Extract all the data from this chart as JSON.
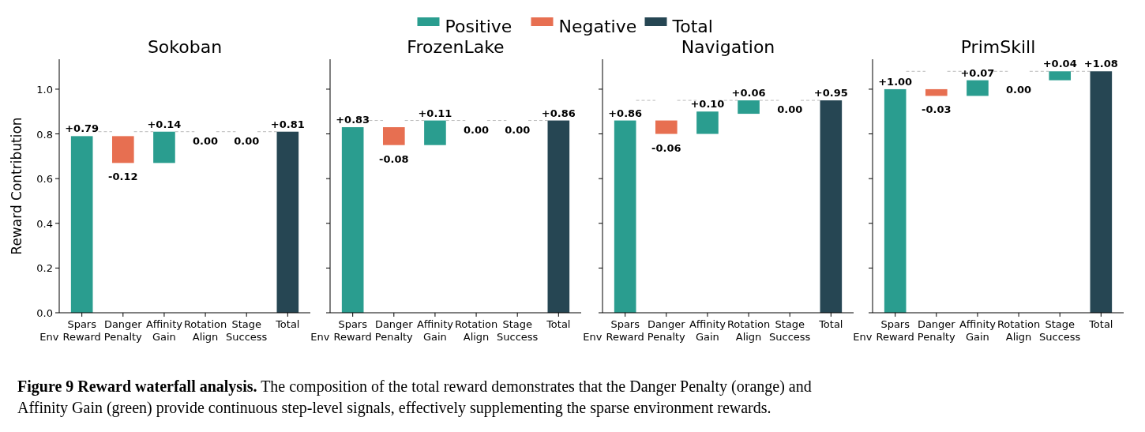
{
  "chart_data": [
    {
      "type": "bar",
      "title": "Sokoban",
      "ylabel": "Reward Contribution",
      "categories": [
        "Spars\nEnv Reward",
        "Danger\nPenalty",
        "Affinity\nGain",
        "Rotation\nAlign",
        "Stage\nSuccess",
        "Total"
      ],
      "ylim": [
        0,
        1.134
      ],
      "yticks": [
        {
          "value": 0,
          "label": "0.0"
        },
        {
          "value": 0.2,
          "label": "0.2"
        },
        {
          "value": 0.4,
          "label": "0.4"
        },
        {
          "value": 0.6,
          "label": "0.6"
        },
        {
          "value": 0.8,
          "label": "0.8"
        },
        {
          "value": 1,
          "label": "1.0"
        }
      ],
      "legend": "top",
      "series": [
        {
          "name": "Positive",
          "color": "#2a9d8f",
          "values": [
            0.79,
            null,
            0.14,
            null,
            null,
            null
          ],
          "base": [
            0,
            null,
            0.67,
            null,
            null,
            null
          ],
          "value_labels": [
            "+0.79",
            null,
            "+0.14",
            null,
            null,
            null
          ]
        },
        {
          "name": "Negative",
          "color": "#e76f51",
          "values": [
            null,
            -0.12,
            null,
            null,
            null,
            null
          ],
          "base": [
            null,
            0.79,
            null,
            null,
            null,
            null
          ],
          "value_labels": [
            null,
            "-0.12",
            null,
            null,
            null,
            null
          ]
        },
        {
          "name": "Total",
          "color": "#264653",
          "values": [
            null,
            null,
            null,
            null,
            null,
            0.81
          ],
          "base": [
            null,
            null,
            null,
            null,
            null,
            0
          ],
          "value_labels": [
            null,
            null,
            null,
            null,
            null,
            "+0.81"
          ]
        }
      ],
      "annotations": [
        "0.00",
        "0.00",
        "Figure 9  Reward waterfall analysis. The composition of the total reward demonstrates that the Danger Penalty (orange) and Affinity Gain (green) provide continuous step-level signals, effectively supplementing the sparse environment rewards."
      ]
    },
    {
      "type": "bar",
      "title": "FrozenLake",
      "categories": [
        "Spars\nEnv Reward",
        "Danger\nPenalty",
        "Affinity\nGain",
        "Rotation\nAlign",
        "Stage\nSuccess",
        "Total"
      ],
      "ylim": [
        0,
        1.134
      ],
      "yticks": [
        {
          "value": 0,
          "label": null
        },
        {
          "value": 0.2,
          "label": null
        },
        {
          "value": 0.4,
          "label": null
        },
        {
          "value": 0.6,
          "label": null
        },
        {
          "value": 0.8,
          "label": null
        },
        {
          "value": 1,
          "label": null
        }
      ],
      "tick_labels": "x",
      "series": [
        {
          "color": "#2a9d8f",
          "values": [
            0.83,
            null,
            0.11,
            null,
            null,
            null
          ],
          "base": [
            0,
            null,
            0.75,
            null,
            null,
            null
          ],
          "value_labels": [
            "+0.83",
            null,
            "+0.11",
            null,
            null,
            null
          ]
        },
        {
          "color": "#e76f51",
          "values": [
            null,
            -0.08,
            null,
            null,
            null,
            null
          ],
          "base": [
            null,
            0.83,
            null,
            null,
            null,
            null
          ],
          "value_labels": [
            null,
            "-0.08",
            null,
            null,
            null,
            null
          ]
        },
        {
          "color": "#264653",
          "values": [
            null,
            null,
            null,
            null,
            null,
            0.86
          ],
          "base": [
            null,
            null,
            null,
            null,
            null,
            0
          ],
          "value_labels": [
            null,
            null,
            null,
            null,
            null,
            "+0.86"
          ]
        }
      ],
      "annotations": [
        "0.00",
        "0.00"
      ]
    },
    {
      "type": "bar",
      "title": "Navigation",
      "categories": [
        "Spars\nEnv Reward",
        "Danger\nPenalty",
        "Affinity\nGain",
        "Rotation\nAlign",
        "Stage\nSuccess",
        "Total"
      ],
      "ylim": [
        0,
        1.134
      ],
      "yticks": [
        {
          "value": 0,
          "label": null
        },
        {
          "value": 0.2,
          "label": null
        },
        {
          "value": 0.4,
          "label": null
        },
        {
          "value": 0.6,
          "label": null
        },
        {
          "value": 0.8,
          "label": null
        },
        {
          "value": 1,
          "label": null
        }
      ],
      "tick_labels": "x",
      "series": [
        {
          "color": "#2a9d8f",
          "values": [
            0.86,
            null,
            0.1,
            0.06,
            null,
            null
          ],
          "base": [
            0,
            null,
            0.8,
            0.89,
            null,
            null
          ],
          "value_labels": [
            "+0.86",
            null,
            "+0.10",
            "+0.06",
            null,
            null
          ]
        },
        {
          "color": "#e76f51",
          "values": [
            null,
            -0.06,
            null,
            null,
            null,
            null
          ],
          "base": [
            null,
            0.86,
            null,
            null,
            null,
            null
          ],
          "value_labels": [
            null,
            "-0.06",
            null,
            null,
            null,
            null
          ]
        },
        {
          "color": "#264653",
          "values": [
            null,
            null,
            null,
            null,
            null,
            0.95
          ],
          "base": [
            null,
            null,
            null,
            null,
            null,
            0
          ],
          "value_labels": [
            null,
            null,
            null,
            null,
            null,
            "+0.95"
          ]
        }
      ],
      "annotations": [
        "0.00"
      ]
    },
    {
      "type": "bar",
      "title": "PrimSkill",
      "categories": [
        "Spars\nEnv Reward",
        "Danger\nPenalty",
        "Affinity\nGain",
        "Rotation\nAlign",
        "Stage\nSuccess",
        "Total"
      ],
      "ylim": [
        0,
        1.134
      ],
      "yticks": [
        {
          "value": 0,
          "label": null
        },
        {
          "value": 0.2,
          "label": null
        },
        {
          "value": 0.4,
          "label": null
        },
        {
          "value": 0.6,
          "label": null
        },
        {
          "value": 0.8,
          "label": null
        },
        {
          "value": 1,
          "label": null
        }
      ],
      "tick_labels": "x",
      "series": [
        {
          "color": "#2a9d8f",
          "values": [
            1,
            null,
            0.07,
            null,
            0.04,
            null
          ],
          "base": [
            0,
            null,
            0.97,
            null,
            1.04,
            null
          ],
          "value_labels": [
            "+1.00",
            null,
            "+0.07",
            null,
            "+0.04",
            null
          ]
        },
        {
          "color": "#e76f51",
          "values": [
            null,
            -0.03,
            null,
            null,
            null,
            null
          ],
          "base": [
            null,
            1,
            null,
            null,
            null,
            null
          ],
          "value_labels": [
            null,
            "-0.03",
            null,
            null,
            null,
            null
          ]
        },
        {
          "color": "#264653",
          "values": [
            null,
            null,
            null,
            null,
            null,
            1.08
          ],
          "base": [
            null,
            null,
            null,
            null,
            null,
            0
          ],
          "value_labels": [
            null,
            null,
            null,
            null,
            null,
            "+1.08"
          ]
        }
      ],
      "annotations": [
        "0.00"
      ]
    }
  ]
}
